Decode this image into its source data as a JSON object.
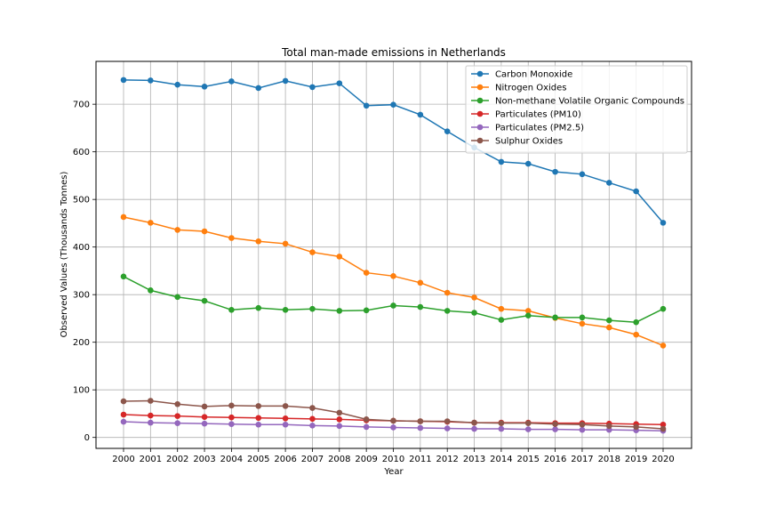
{
  "chart_data": {
    "type": "line",
    "title": "Total man-made emissions in Netherlands",
    "xlabel": "Year",
    "ylabel": "Observed Values (Thousands Tonnes)",
    "x": [
      "2000",
      "2001",
      "2002",
      "2003",
      "2004",
      "2005",
      "2006",
      "2007",
      "2008",
      "2009",
      "2010",
      "2011",
      "2012",
      "2013",
      "2014",
      "2015",
      "2016",
      "2017",
      "2018",
      "2019",
      "2020"
    ],
    "ylim": [
      -23,
      790
    ],
    "yticks": [
      0,
      100,
      200,
      300,
      400,
      500,
      600,
      700
    ],
    "grid": true,
    "legend_position": "top-right",
    "series": [
      {
        "name": "Carbon Monoxide",
        "color": "#1f77b4",
        "values": [
          751,
          750,
          741,
          737,
          748,
          734,
          749,
          736,
          744,
          697,
          699,
          678,
          643,
          609,
          579,
          575,
          558,
          553,
          535,
          517,
          451
        ]
      },
      {
        "name": "Nitrogen Oxides",
        "color": "#ff7f0e",
        "values": [
          463,
          451,
          436,
          433,
          419,
          412,
          407,
          389,
          380,
          346,
          339,
          325,
          304,
          294,
          270,
          266,
          251,
          239,
          231,
          216,
          193
        ]
      },
      {
        "name": "Non-methane Volatile Organic Compounds",
        "color": "#2ca02c",
        "values": [
          338,
          309,
          295,
          287,
          268,
          272,
          268,
          270,
          266,
          267,
          277,
          274,
          266,
          262,
          247,
          256,
          252,
          252,
          246,
          242,
          270
        ]
      },
      {
        "name": "Particulates (PM10)",
        "color": "#d62728",
        "values": [
          48,
          46,
          45,
          43,
          42,
          41,
          40,
          39,
          38,
          36,
          35,
          34,
          33,
          31,
          31,
          31,
          30,
          30,
          29,
          28,
          27
        ]
      },
      {
        "name": "Particulates (PM2.5)",
        "color": "#9467bd",
        "values": [
          33,
          31,
          30,
          29,
          28,
          27,
          27,
          25,
          24,
          22,
          21,
          20,
          19,
          18,
          18,
          17,
          17,
          16,
          16,
          15,
          14
        ]
      },
      {
        "name": "Sulphur Oxides",
        "color": "#8c564b",
        "values": [
          76,
          77,
          70,
          65,
          67,
          66,
          66,
          62,
          52,
          38,
          35,
          34,
          34,
          31,
          30,
          30,
          28,
          27,
          24,
          22,
          18
        ]
      }
    ]
  }
}
